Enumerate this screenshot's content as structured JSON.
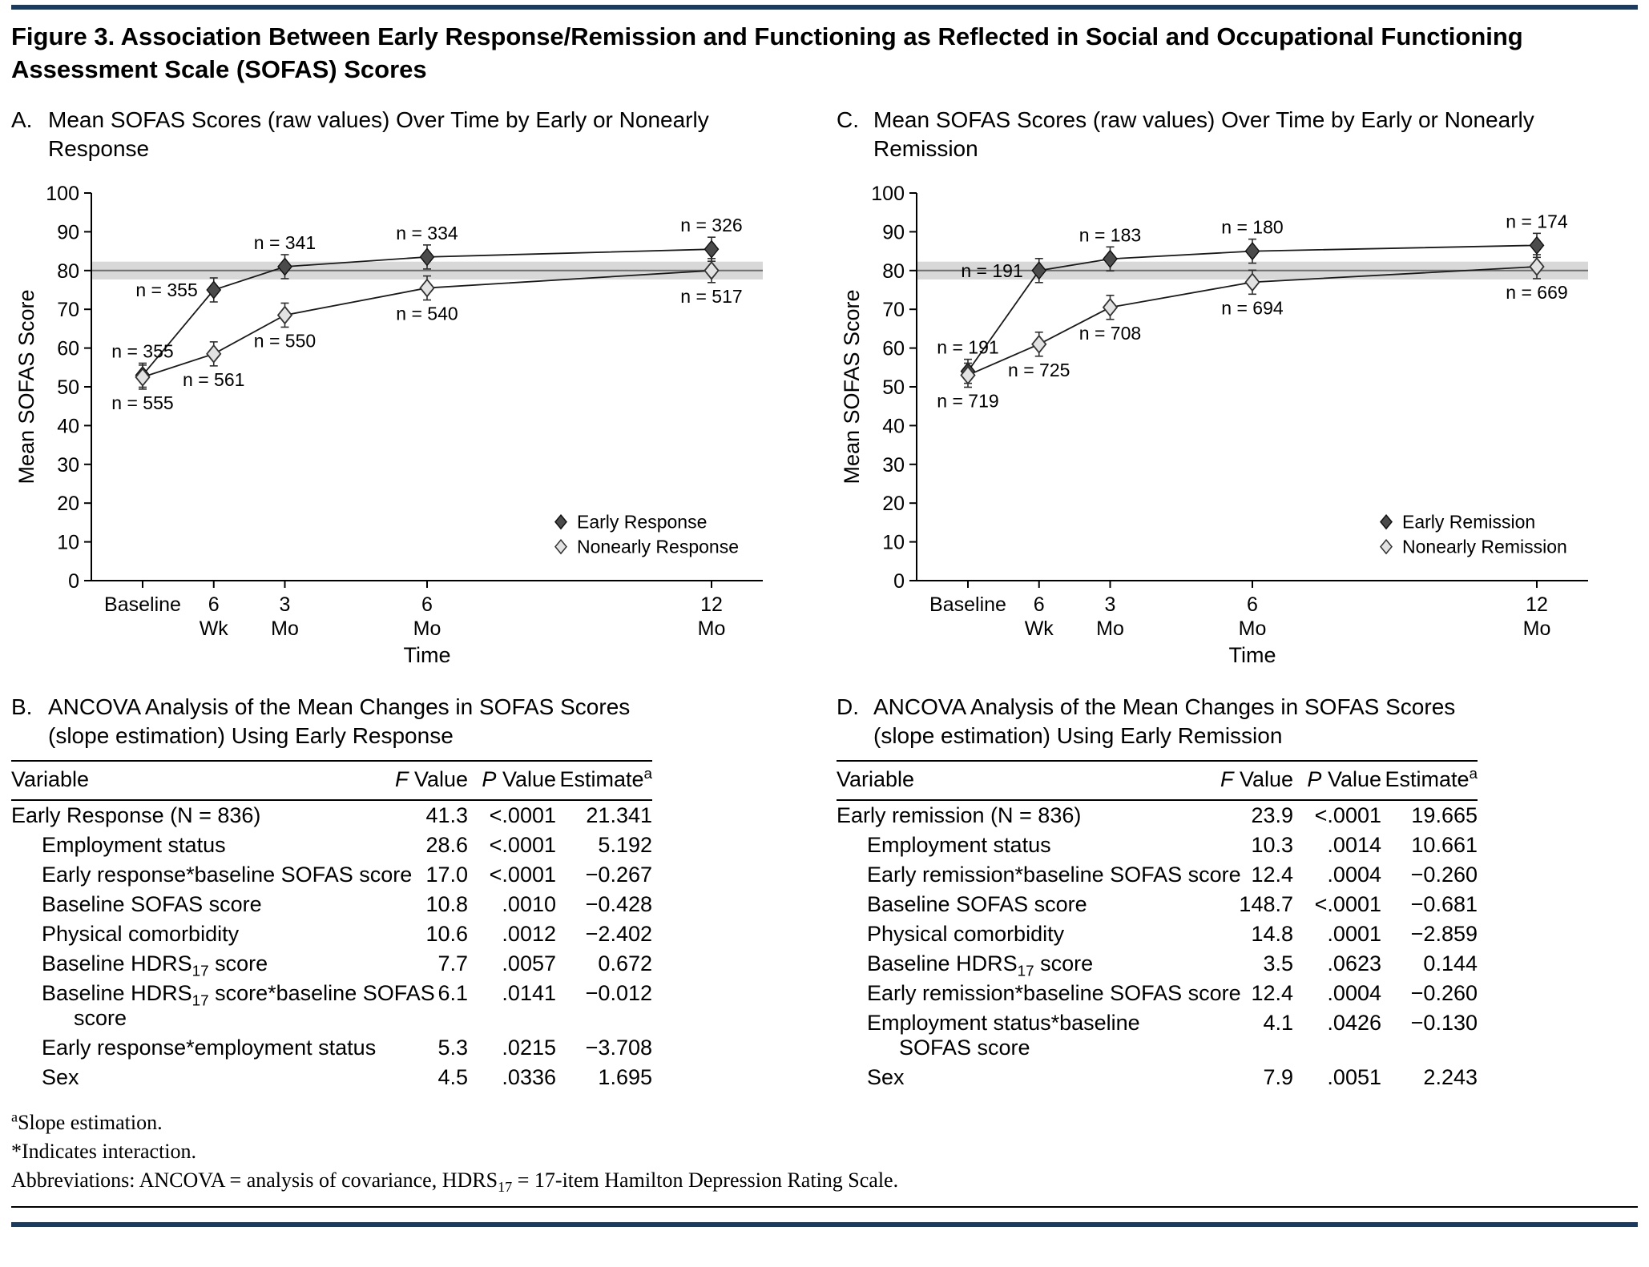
{
  "figure_title": "Figure 3. Association Between Early Response/Remission and Functioning as Reflected in Social and Occupational Functioning Assessment Scale (SOFAS) Scores",
  "colors": {
    "rule": "#1b3a5f",
    "band_fill": "#d8d8d8",
    "band_line": "#6e6e6e",
    "marker_filled": "#4b4b4b",
    "marker_open_fill": "#e2e2e2",
    "line": "#1a1a1a"
  },
  "chart_data": [
    {
      "id": "A",
      "type": "line",
      "panel_label": "A.",
      "title_lines": [
        "Mean SOFAS Scores (raw values) Over Time by Early or Nonearly",
        "Response"
      ],
      "xlabel": "Time",
      "ylabel": "Mean SOFAS Score",
      "ylim": [
        0,
        100
      ],
      "ytick_step": 10,
      "x_months": [
        0,
        1.5,
        3,
        6,
        12
      ],
      "x_tick_labels": [
        [
          "Baseline"
        ],
        [
          "6",
          "Wk"
        ],
        [
          "3",
          "Mo"
        ],
        [
          "6",
          "Mo"
        ],
        [
          "12",
          "Mo"
        ]
      ],
      "reference_band": {
        "low": 77.7,
        "high": 82.3,
        "line": 80
      },
      "legend_position": "bottom-right",
      "grid": false,
      "series": [
        {
          "name": "Early Response",
          "marker": "filled-diamond",
          "values": [
            53,
            75,
            81,
            83.5,
            85.5
          ],
          "n_labels": [
            "n = 355",
            "n = 355",
            "n = 341",
            "n = 334",
            "n = 326"
          ],
          "n_label_placement": [
            "above",
            "left",
            "above",
            "above",
            "above"
          ]
        },
        {
          "name": "Nonearly Response",
          "marker": "open-diamond",
          "values": [
            52.5,
            58.5,
            68.5,
            75.5,
            80
          ],
          "n_labels": [
            "n = 555",
            "n = 561",
            "n = 550",
            "n = 540",
            "n = 517"
          ],
          "n_label_placement": [
            "below",
            "below",
            "below",
            "below",
            "below"
          ]
        }
      ]
    },
    {
      "id": "C",
      "type": "line",
      "panel_label": "C.",
      "title_lines": [
        "Mean SOFAS Scores (raw values) Over Time by Early or Nonearly",
        "Remission"
      ],
      "xlabel": "Time",
      "ylabel": "Mean SOFAS Score",
      "ylim": [
        0,
        100
      ],
      "ytick_step": 10,
      "x_months": [
        0,
        1.5,
        3,
        6,
        12
      ],
      "x_tick_labels": [
        [
          "Baseline"
        ],
        [
          "6",
          "Wk"
        ],
        [
          "3",
          "Mo"
        ],
        [
          "6",
          "Mo"
        ],
        [
          "12",
          "Mo"
        ]
      ],
      "reference_band": {
        "low": 77.7,
        "high": 82.3,
        "line": 80
      },
      "legend_position": "bottom-right",
      "grid": false,
      "series": [
        {
          "name": "Early Remission",
          "marker": "filled-diamond",
          "values": [
            54,
            80,
            83,
            85,
            86.5
          ],
          "n_labels": [
            "n = 191",
            "n = 191",
            "n = 183",
            "n = 180",
            "n = 174"
          ],
          "n_label_placement": [
            "above",
            "left",
            "above",
            "above",
            "above"
          ]
        },
        {
          "name": "Nonearly Remission",
          "marker": "open-diamond",
          "values": [
            53,
            61,
            70.5,
            77,
            81
          ],
          "n_labels": [
            "n = 719",
            "n = 725",
            "n = 708",
            "n = 694",
            "n = 669"
          ],
          "n_label_placement": [
            "below",
            "below",
            "below",
            "below",
            "below"
          ]
        }
      ]
    }
  ],
  "tables": [
    {
      "id": "B",
      "panel_label": "B.",
      "title_lines": [
        "ANCOVA Analysis of the Mean Changes in SOFAS Scores",
        "(slope estimation) Using Early Response"
      ],
      "headers": [
        {
          "label": "Variable"
        },
        {
          "italic": "F",
          "label": " Value"
        },
        {
          "italic": "P",
          "label": " Value"
        },
        {
          "label": "Estimate",
          "sup": "a"
        }
      ],
      "rows": [
        {
          "variable": [
            "Early Response (N = 836)"
          ],
          "indent": false,
          "f": "41.3",
          "p": "<.0001",
          "est": "21.341"
        },
        {
          "variable": [
            "Employment status"
          ],
          "indent": true,
          "f": "28.6",
          "p": "<.0001",
          "est": "5.192"
        },
        {
          "variable": [
            "Early response*baseline SOFAS score"
          ],
          "indent": true,
          "f": "17.0",
          "p": "<.0001",
          "est": "−0.267"
        },
        {
          "variable": [
            "Baseline SOFAS score"
          ],
          "indent": true,
          "f": "10.8",
          "p": ".0010",
          "est": "−0.428"
        },
        {
          "variable": [
            "Physical comorbidity"
          ],
          "indent": true,
          "f": "10.6",
          "p": ".0012",
          "est": "−2.402"
        },
        {
          "variable": [
            "Baseline HDRS~17~ score"
          ],
          "indent": true,
          "f": "7.7",
          "p": ".0057",
          "est": "0.672"
        },
        {
          "variable": [
            "Baseline HDRS~17~ score*baseline SOFAS",
            "score"
          ],
          "indent": true,
          "f": "6.1",
          "p": ".0141",
          "est": "−0.012"
        },
        {
          "variable": [
            "Early response*employment status"
          ],
          "indent": true,
          "f": "5.3",
          "p": ".0215",
          "est": "−3.708"
        },
        {
          "variable": [
            "Sex"
          ],
          "indent": true,
          "f": "4.5",
          "p": ".0336",
          "est": "1.695"
        }
      ]
    },
    {
      "id": "D",
      "panel_label": "D.",
      "title_lines": [
        "ANCOVA Analysis of the Mean Changes in SOFAS Scores",
        "(slope estimation) Using Early Remission"
      ],
      "headers": [
        {
          "label": "Variable"
        },
        {
          "italic": "F",
          "label": " Value"
        },
        {
          "italic": "P",
          "label": " Value"
        },
        {
          "label": "Estimate",
          "sup": "a"
        }
      ],
      "rows": [
        {
          "variable": [
            "Early remission (N = 836)"
          ],
          "indent": false,
          "f": "23.9",
          "p": "<.0001",
          "est": "19.665"
        },
        {
          "variable": [
            "Employment status"
          ],
          "indent": true,
          "f": "10.3",
          "p": ".0014",
          "est": "10.661"
        },
        {
          "variable": [
            "Early remission*baseline SOFAS score"
          ],
          "indent": true,
          "f": "12.4",
          "p": ".0004",
          "est": "−0.260"
        },
        {
          "variable": [
            "Baseline SOFAS score"
          ],
          "indent": true,
          "f": "148.7",
          "p": "<.0001",
          "est": "−0.681"
        },
        {
          "variable": [
            "Physical comorbidity"
          ],
          "indent": true,
          "f": "14.8",
          "p": ".0001",
          "est": "−2.859"
        },
        {
          "variable": [
            "Baseline HDRS~17~ score"
          ],
          "indent": true,
          "f": "3.5",
          "p": ".0623",
          "est": "0.144"
        },
        {
          "variable": [
            "Early remission*baseline SOFAS score"
          ],
          "indent": true,
          "f": "12.4",
          "p": ".0004",
          "est": "−0.260"
        },
        {
          "variable": [
            "Employment status*baseline",
            "SOFAS score"
          ],
          "indent": true,
          "f": "4.1",
          "p": ".0426",
          "est": "−0.130"
        },
        {
          "variable": [
            "Sex"
          ],
          "indent": true,
          "f": "7.9",
          "p": ".0051",
          "est": "2.243"
        }
      ]
    }
  ],
  "footnotes": [
    "^a^Slope estimation.",
    "*Indicates interaction.",
    "Abbreviations: ANCOVA = analysis of covariance, HDRS~17~ = 17-item Hamilton Depression Rating Scale."
  ]
}
